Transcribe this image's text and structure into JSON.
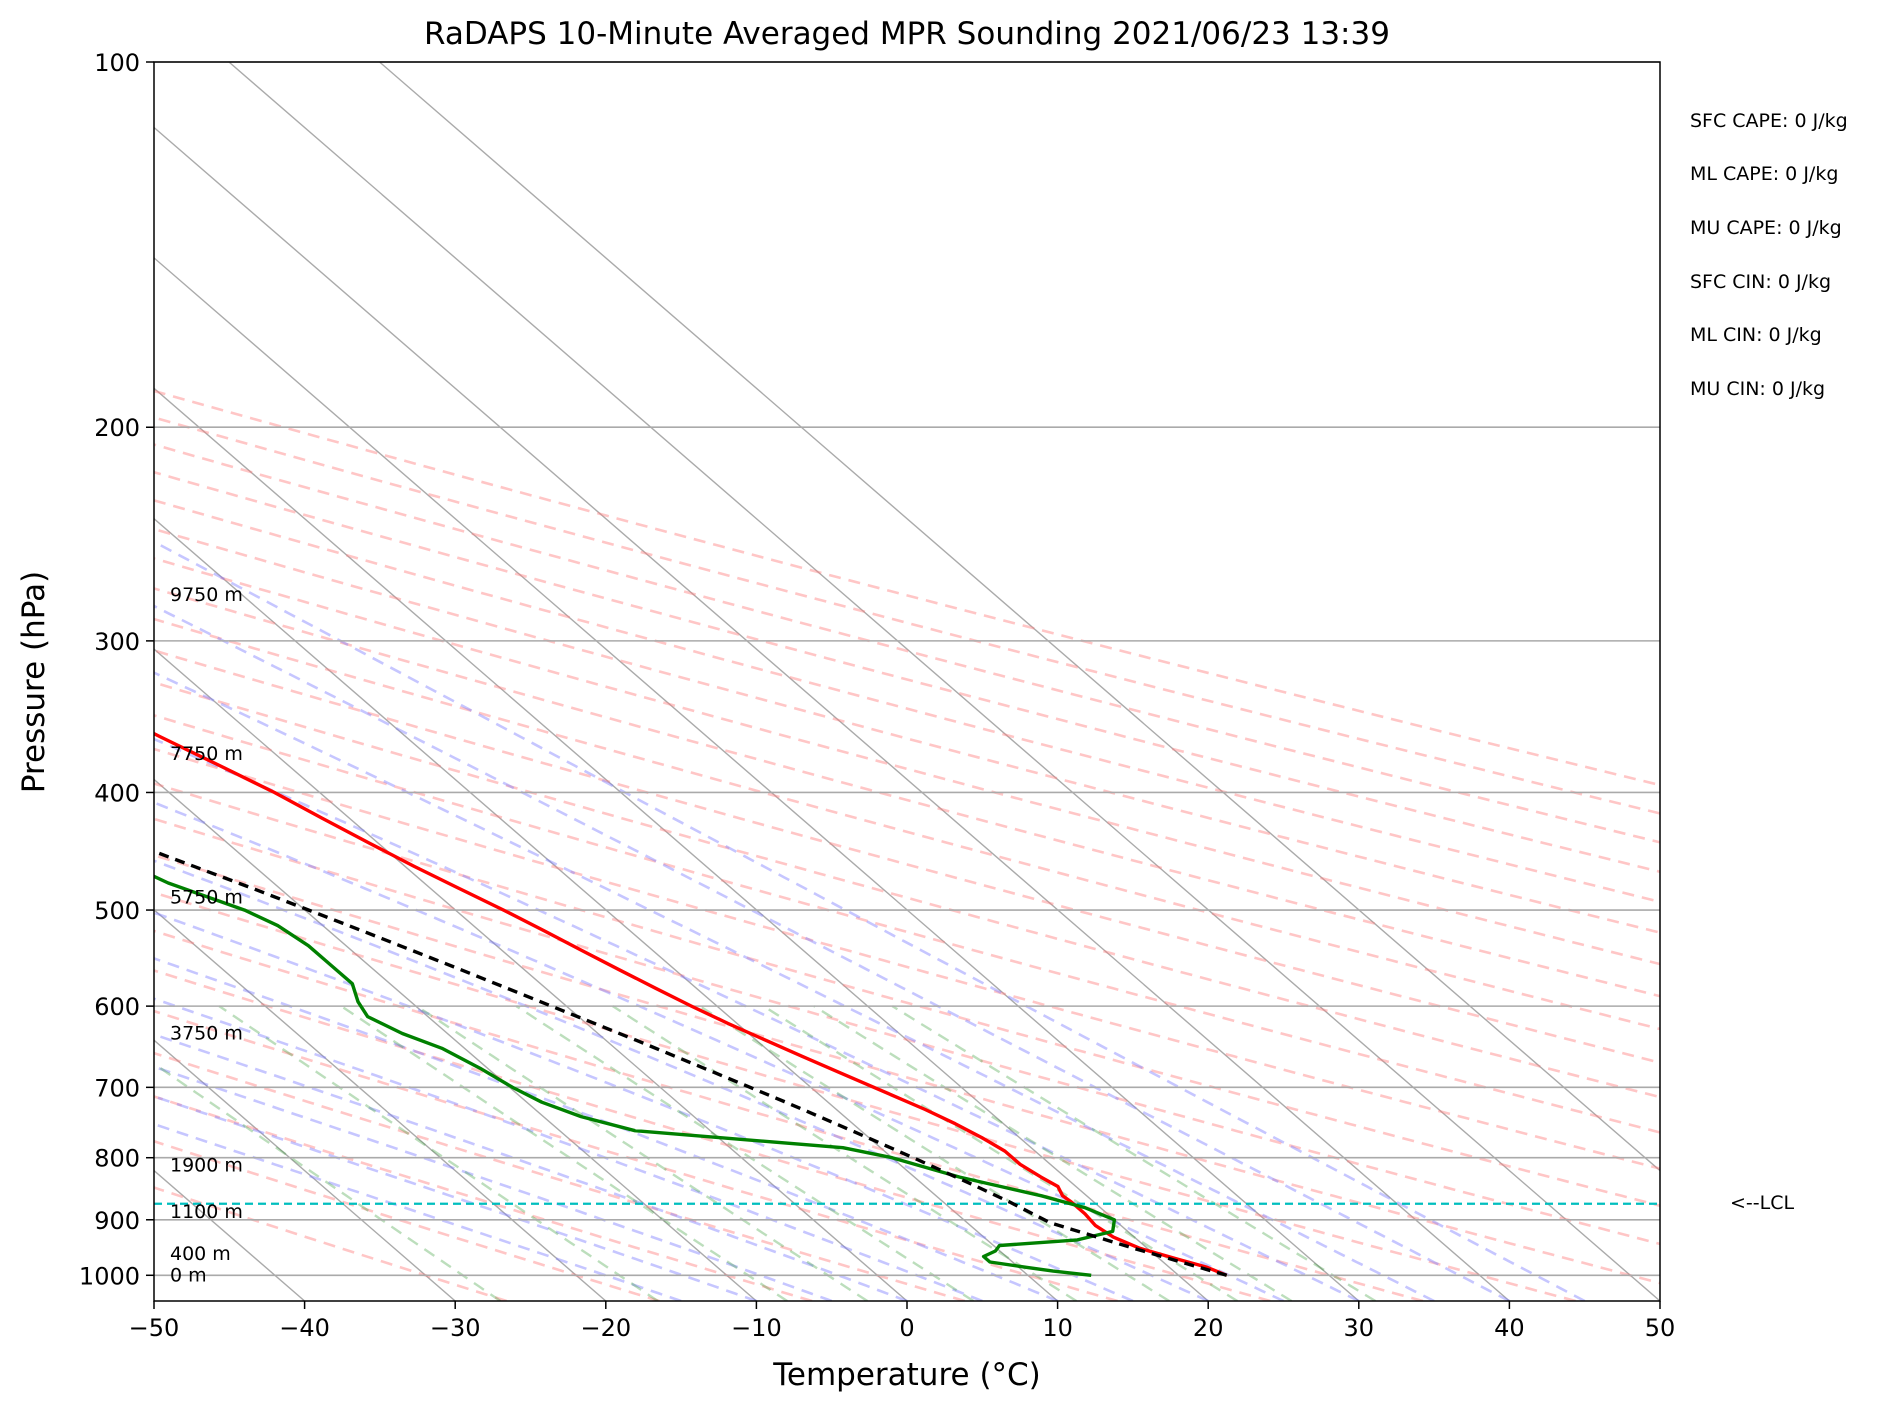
{
  "chart_data": {
    "type": "line",
    "title": "RaDAPS 10-Minute Averaged MPR Sounding 2021/06/23 13:39",
    "xlabel": "Temperature (°C)",
    "ylabel": "Pressure (hPa)",
    "xlim": [
      -50,
      50
    ],
    "ylim": [
      1050,
      100
    ],
    "y_scale": "log",
    "x_ticks": [
      -50,
      -40,
      -30,
      -20,
      -10,
      0,
      10,
      20,
      30,
      40,
      50
    ],
    "x_tick_labels": [
      "−50",
      "−40",
      "−30",
      "−20",
      "−10",
      "0",
      "10",
      "20",
      "30",
      "40",
      "50"
    ],
    "y_ticks": [
      100,
      200,
      300,
      400,
      500,
      600,
      700,
      800,
      900,
      1000
    ],
    "y_tick_labels": [
      "100",
      "200",
      "300",
      "400",
      "500",
      "600",
      "700",
      "800",
      "900",
      "1000"
    ],
    "grid": true,
    "skew": "skew-T log-p",
    "background_lines": [
      "dry adiabats",
      "moist adiabats",
      "mixing ratio lines",
      "isotherms"
    ],
    "height_labels": [
      {
        "text": "9750 m",
        "p": 275
      },
      {
        "text": "7750 m",
        "p": 372
      },
      {
        "text": "5750 m",
        "p": 488
      },
      {
        "text": "3750 m",
        "p": 632
      },
      {
        "text": "1900 m",
        "p": 812
      },
      {
        "text": "1100 m",
        "p": 887
      },
      {
        "text": "400 m",
        "p": 960
      },
      {
        "text": "0 m",
        "p": 1000
      }
    ],
    "series": [
      {
        "name": "Temperature",
        "color": "#ff0000",
        "p": [
          1000,
          985,
          970,
          950,
          930,
          910,
          890,
          870,
          860,
          845,
          830,
          810,
          790,
          770,
          750,
          730,
          700,
          680,
          660,
          640,
          620,
          600,
          580,
          560,
          540,
          520,
          500,
          480,
          460,
          440,
          420,
          400,
          380,
          360,
          340,
          320,
          305,
          290,
          275
        ],
        "t": [
          23.2,
          22.5,
          21.2,
          19.5,
          18.6,
          18.3,
          18.5,
          18.5,
          18.4,
          18.8,
          18.4,
          18.0,
          18.0,
          17.5,
          16.8,
          15.9,
          14.2,
          13.0,
          11.8,
          10.6,
          9.4,
          8.3,
          7.3,
          6.3,
          5.3,
          4.3,
          3.2,
          1.9,
          0.6,
          -0.6,
          -1.8,
          -3.0,
          -4.6,
          -6.3,
          -8.0,
          -9.7,
          -11.2,
          -13.5,
          -16.5
        ]
      },
      {
        "name": "Dewpoint",
        "color": "#008000",
        "p": [
          1000,
          992,
          985,
          975,
          965,
          955,
          945,
          935,
          920,
          900,
          880,
          860,
          845,
          830,
          815,
          800,
          785,
          760,
          740,
          720,
          700,
          675,
          650,
          632,
          612,
          595,
          575,
          555,
          535,
          515,
          500,
          475,
          455,
          440,
          432,
          412,
          398,
          385,
          370,
          345,
          332,
          320,
          310,
          303,
          302
        ],
        "t": [
          14.2,
          12.0,
          10.5,
          8.5,
          8.5,
          9.7,
          10.4,
          16.0,
          19.0,
          20.0,
          19.0,
          17.0,
          15.0,
          13.0,
          11.5,
          10.0,
          7.5,
          -5.0,
          -7.5,
          -9.0,
          -9.8,
          -10.5,
          -11.5,
          -13.0,
          -14.0,
          -13.5,
          -12.5,
          -12.5,
          -12.5,
          -13.0,
          -14.0,
          -17.0,
          -18.5,
          -18.5,
          -17.5,
          -17.0,
          -16.5,
          -17.0,
          -16.5,
          -18.0,
          -19.0,
          -20.5,
          -21.5,
          -54.0,
          -66.0
        ]
      },
      {
        "name": "Parcel path",
        "color": "#000000",
        "style": "dashed",
        "p": [
          1000,
          950,
          905,
          870,
          840,
          800,
          760,
          720,
          680,
          640,
          600,
          560,
          520,
          480,
          440,
          400,
          360,
          320,
          290,
          275
        ],
        "t": [
          23.2,
          19.1,
          15.5,
          14.4,
          13.2,
          11.4,
          9.4,
          7.2,
          4.7,
          2.0,
          -1.0,
          -4.2,
          -7.8,
          -11.8,
          -16.4,
          -21.6,
          -27.6,
          -34.6,
          -40.6,
          -44.0
        ]
      }
    ],
    "lcl": {
      "p": 873,
      "color": "#00bfbf",
      "label": "<--LCL"
    },
    "indices": [
      "SFC CAPE: 0 J/kg",
      "ML CAPE: 0 J/kg",
      "MU CAPE: 0 J/kg",
      "SFC CIN: 0 J/kg",
      "ML CIN: 0 J/kg",
      "MU CIN: 0 J/kg"
    ]
  }
}
